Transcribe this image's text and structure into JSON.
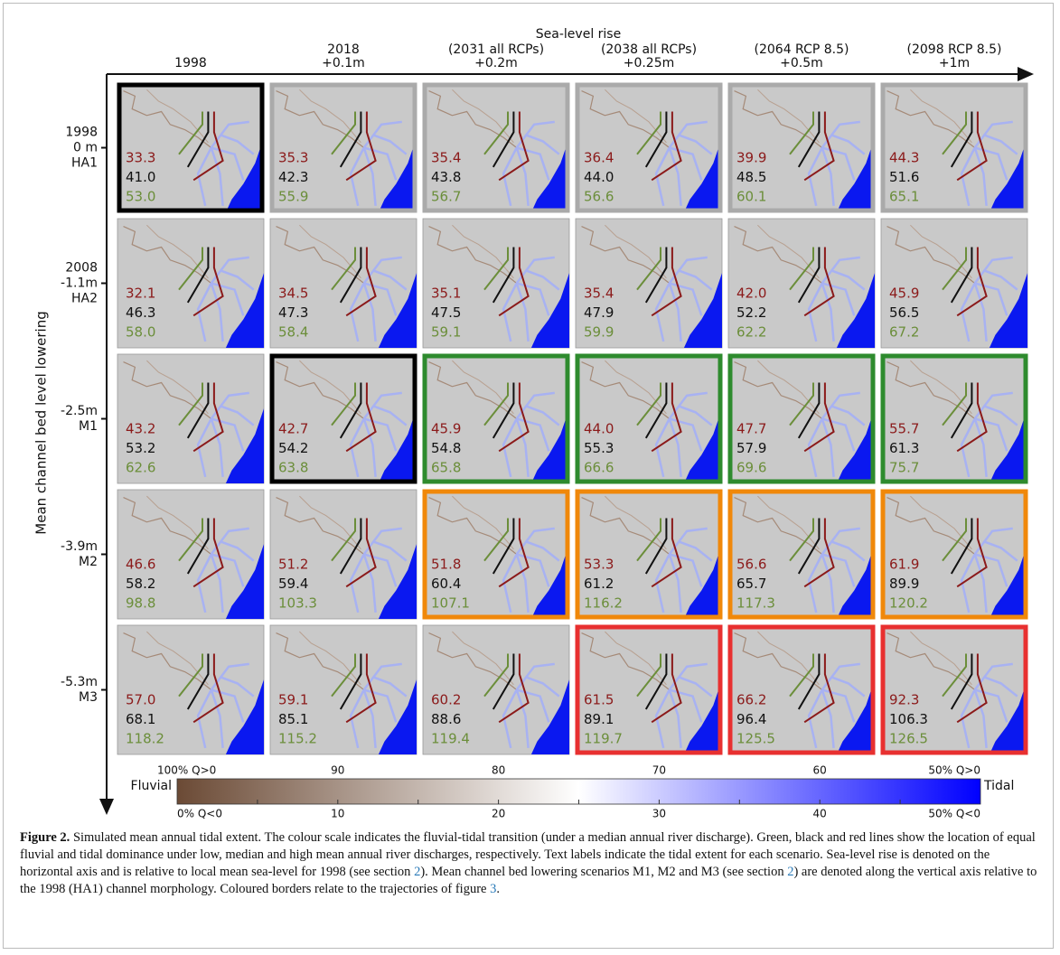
{
  "figure": {
    "x_axis_title": "Sea-level rise",
    "y_axis_title": "Mean channel bed level lowering",
    "columns": [
      [
        "1998"
      ],
      [
        "2018",
        "+0.1m"
      ],
      [
        "(2031 all RCPs)",
        "+0.2m"
      ],
      [
        "(2038 all RCPs)",
        "+0.25m"
      ],
      [
        "(2064 RCP 8.5)",
        "+0.5m"
      ],
      [
        "(2098 RCP 8.5)",
        "+1m"
      ]
    ],
    "rows": [
      [
        "1998",
        "0 m",
        "HA1"
      ],
      [
        "2008",
        "-1.1m",
        "HA2"
      ],
      [
        "-2.5m",
        "M1"
      ],
      [
        "-3.9m",
        "M2"
      ],
      [
        "-5.3m",
        "M3"
      ]
    ],
    "label_colors": {
      "low": "#8b1a1a",
      "median": "#111111",
      "high": "#6b8e3a"
    },
    "cells": [
      [
        {
          "high": "33.3",
          "median": "41.0",
          "low": "53.0",
          "border": "#000000"
        },
        {
          "high": "35.3",
          "median": "42.3",
          "low": "55.9",
          "border": "#aaaaaa"
        },
        {
          "high": "35.4",
          "median": "43.8",
          "low": "56.7",
          "border": "#aaaaaa"
        },
        {
          "high": "36.4",
          "median": "44.0",
          "low": "56.6",
          "border": "#aaaaaa"
        },
        {
          "high": "39.9",
          "median": "48.5",
          "low": "60.1",
          "border": "#aaaaaa"
        },
        {
          "high": "44.3",
          "median": "51.6",
          "low": "65.1",
          "border": "#aaaaaa"
        }
      ],
      [
        {
          "high": "32.1",
          "median": "46.3",
          "low": "58.0"
        },
        {
          "high": "34.5",
          "median": "47.3",
          "low": "58.4"
        },
        {
          "high": "35.1",
          "median": "47.5",
          "low": "59.1"
        },
        {
          "high": "35.4",
          "median": "47.9",
          "low": "59.9"
        },
        {
          "high": "42.0",
          "median": "52.2",
          "low": "62.2"
        },
        {
          "high": "45.9",
          "median": "56.5",
          "low": "67.2"
        }
      ],
      [
        {
          "high": "43.2",
          "median": "53.2",
          "low": "62.6"
        },
        {
          "high": "42.7",
          "median": "54.2",
          "low": "63.8",
          "border": "#000000"
        },
        {
          "high": "45.9",
          "median": "54.8",
          "low": "65.8",
          "border": "#2e8b2e"
        },
        {
          "high": "44.0",
          "median": "55.3",
          "low": "66.6",
          "border": "#2e8b2e"
        },
        {
          "high": "47.7",
          "median": "57.9",
          "low": "69.6",
          "border": "#2e8b2e"
        },
        {
          "high": "55.7",
          "median": "61.3",
          "low": "75.7",
          "border": "#2e8b2e"
        }
      ],
      [
        {
          "high": "46.6",
          "median": "58.2",
          "low": "98.8"
        },
        {
          "high": "51.2",
          "median": "59.4",
          "low": "103.3"
        },
        {
          "high": "51.8",
          "median": "60.4",
          "low": "107.1",
          "border": "#f0880a"
        },
        {
          "high": "53.3",
          "median": "61.2",
          "low": "116.2",
          "border": "#f0880a"
        },
        {
          "high": "56.6",
          "median": "65.7",
          "low": "117.3",
          "border": "#f0880a"
        },
        {
          "high": "61.9",
          "median": "89.9",
          "low": "120.2",
          "border": "#f0880a"
        }
      ],
      [
        {
          "high": "57.0",
          "median": "68.1",
          "low": "118.2"
        },
        {
          "high": "59.1",
          "median": "85.1",
          "low": "115.2"
        },
        {
          "high": "60.2",
          "median": "88.6",
          "low": "119.4"
        },
        {
          "high": "61.5",
          "median": "89.1",
          "low": "119.7",
          "border": "#e83030"
        },
        {
          "high": "66.2",
          "median": "96.4",
          "low": "125.5",
          "border": "#e83030"
        },
        {
          "high": "92.3",
          "median": "106.3",
          "low": "126.5",
          "border": "#e83030"
        }
      ]
    ],
    "colorbar": {
      "left_label": "Fluvial",
      "right_label": "Tidal",
      "colors": [
        "#6b4a35",
        "#ffffff",
        "#0000ff"
      ],
      "top_labels": [
        "100% Q>0",
        "90",
        "80",
        "70",
        "60",
        "50% Q>0"
      ],
      "bottom_labels": [
        "0% Q<0",
        "10",
        "20",
        "30",
        "40",
        "50% Q<0"
      ]
    }
  },
  "caption": {
    "label": "Figure 2.",
    "segments": [
      {
        "text": " Simulated mean annual tidal extent. The colour scale indicates the fluvial-tidal transition (under a median annual river discharge). Green, black and red lines show the location of equal fluvial and tidal dominance under low, median and high mean annual river discharges, respectively. Text labels indicate the tidal extent for each scenario. Sea-level rise is denoted on the horizontal axis and is relative to local mean sea-level for 1998 (see section "
      },
      {
        "text": "2",
        "link": true
      },
      {
        "text": "). Mean channel bed lowering scenarios M1, M2 and M3 (see section "
      },
      {
        "text": "2",
        "link": true
      },
      {
        "text": ") are denoted along the vertical axis relative to the 1998 (HA1) channel morphology. Coloured borders relate to the trajectories of figure "
      },
      {
        "text": "3",
        "link": true
      },
      {
        "text": "."
      }
    ]
  }
}
